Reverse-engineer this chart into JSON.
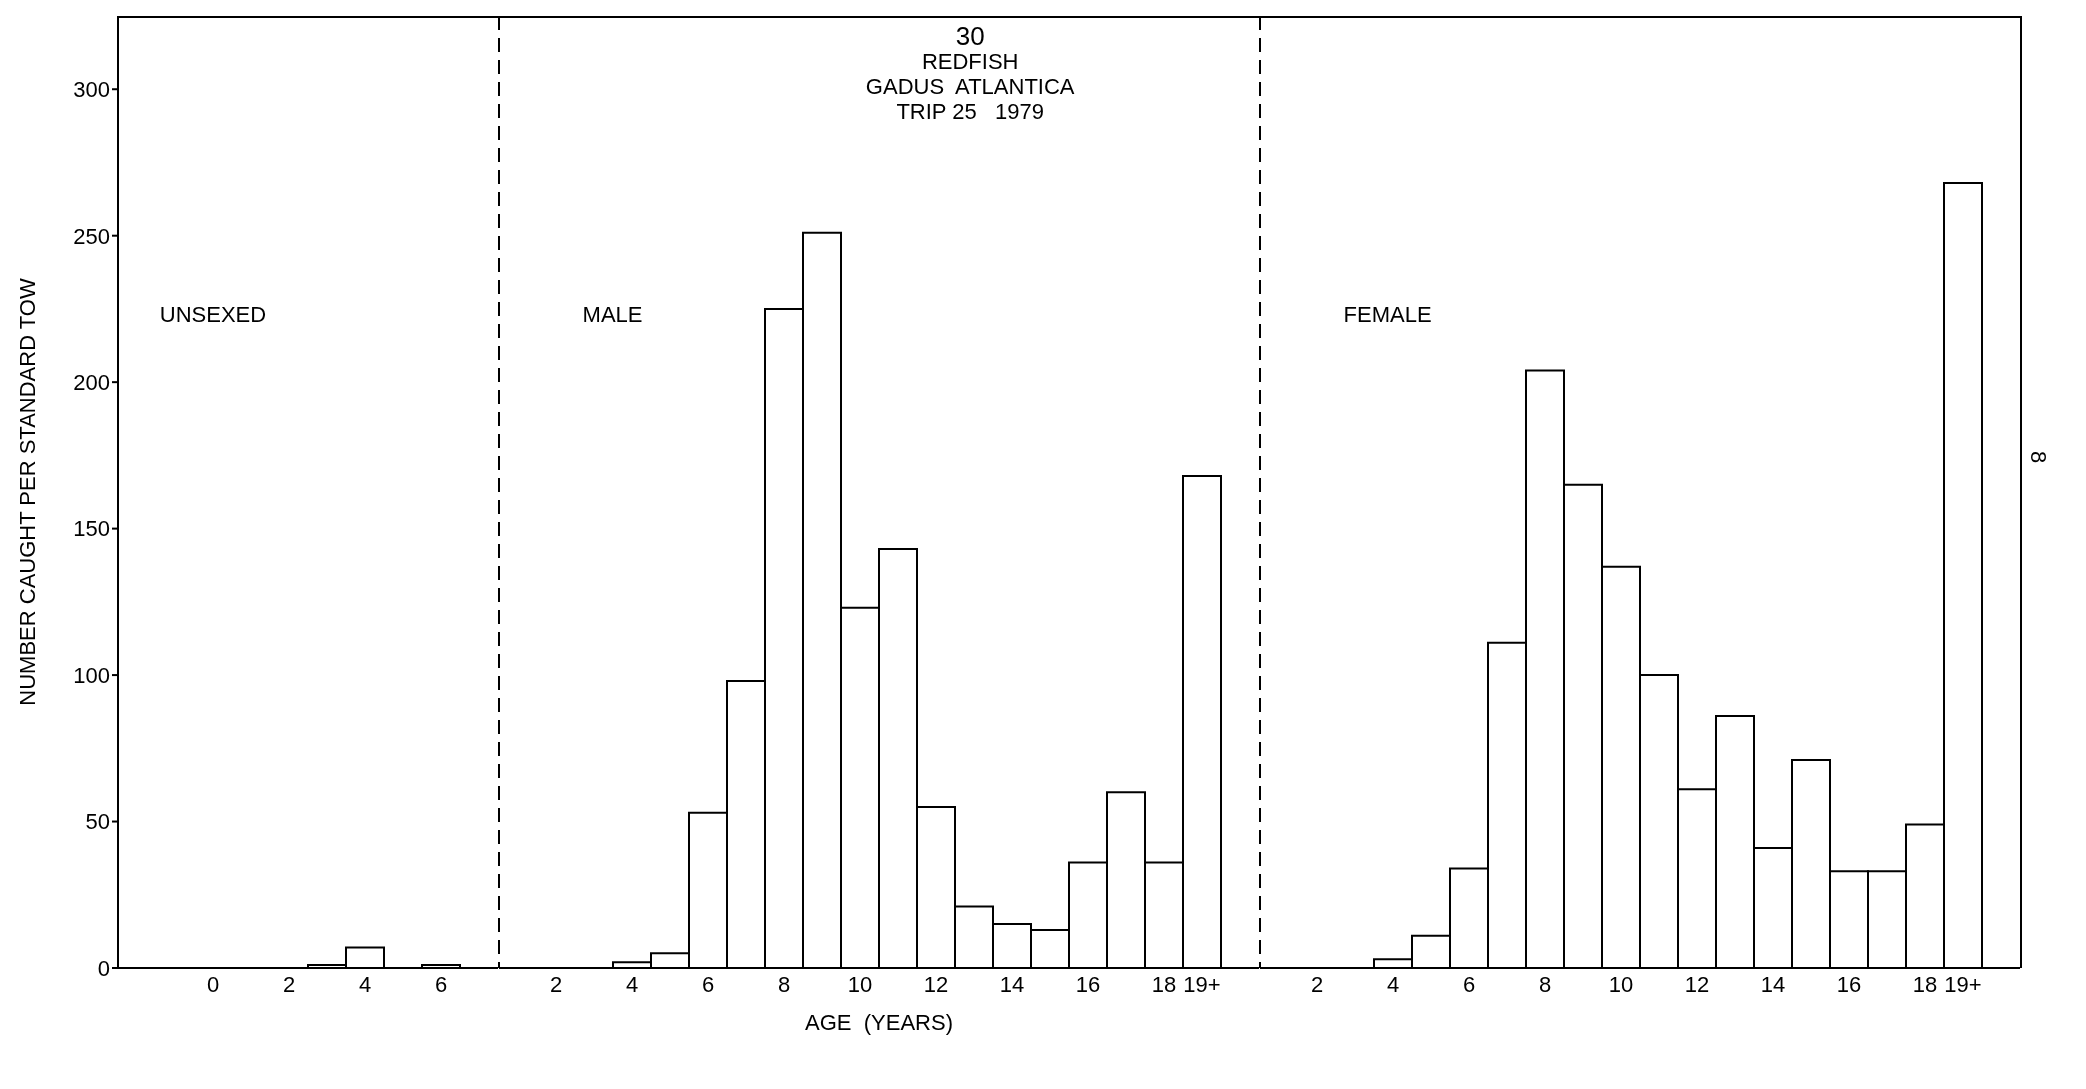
{
  "chart_data": [
    {
      "type": "bar",
      "title": "UNSEXED",
      "ylabel": "NUMBER CAUGHT PER STANDARD TOW",
      "categories": [
        null,
        null,
        "0",
        null,
        "2",
        null,
        "4",
        null,
        "6",
        null
      ],
      "values": [
        null,
        null,
        null,
        null,
        null,
        1,
        7,
        null,
        1,
        null
      ],
      "color": "#ffffff",
      "ylim": [
        0,
        325
      ],
      "yticks": [
        0,
        50,
        100,
        150,
        200,
        250,
        300
      ]
    },
    {
      "type": "bar",
      "title": "MALE",
      "subtitle": "REDFISH\nGADUS  ATLANTICA\nTRIP 25   1979",
      "xlabel": "AGE  (YEARS)",
      "annotations": [
        "30"
      ],
      "tick_labels": "x",
      "categories": [
        null,
        "2",
        null,
        "4",
        null,
        "6",
        null,
        "8",
        null,
        "10",
        null,
        "12",
        null,
        "14",
        null,
        "16",
        null,
        "18",
        "19+",
        null
      ],
      "values": [
        null,
        null,
        null,
        2,
        5,
        53,
        98,
        225,
        251,
        123,
        143,
        55,
        21,
        15,
        13,
        36,
        60,
        36,
        168,
        null
      ],
      "color": "#ffffff",
      "ylim": [
        0,
        325
      ]
    },
    {
      "type": "bar",
      "title": "FEMALE",
      "annotations": [
        "8"
      ],
      "tick_labels": "x",
      "categories": [
        null,
        "2",
        null,
        "4",
        null,
        "6",
        null,
        "8",
        null,
        "10",
        null,
        "12",
        null,
        "14",
        null,
        "16",
        null,
        "18",
        "19+",
        null
      ],
      "values": [
        null,
        null,
        null,
        3,
        11,
        34,
        111,
        204,
        165,
        137,
        100,
        61,
        86,
        41,
        71,
        33,
        33,
        49,
        268,
        null
      ],
      "color": "#ffffff",
      "ylim": [
        0,
        325
      ]
    }
  ]
}
